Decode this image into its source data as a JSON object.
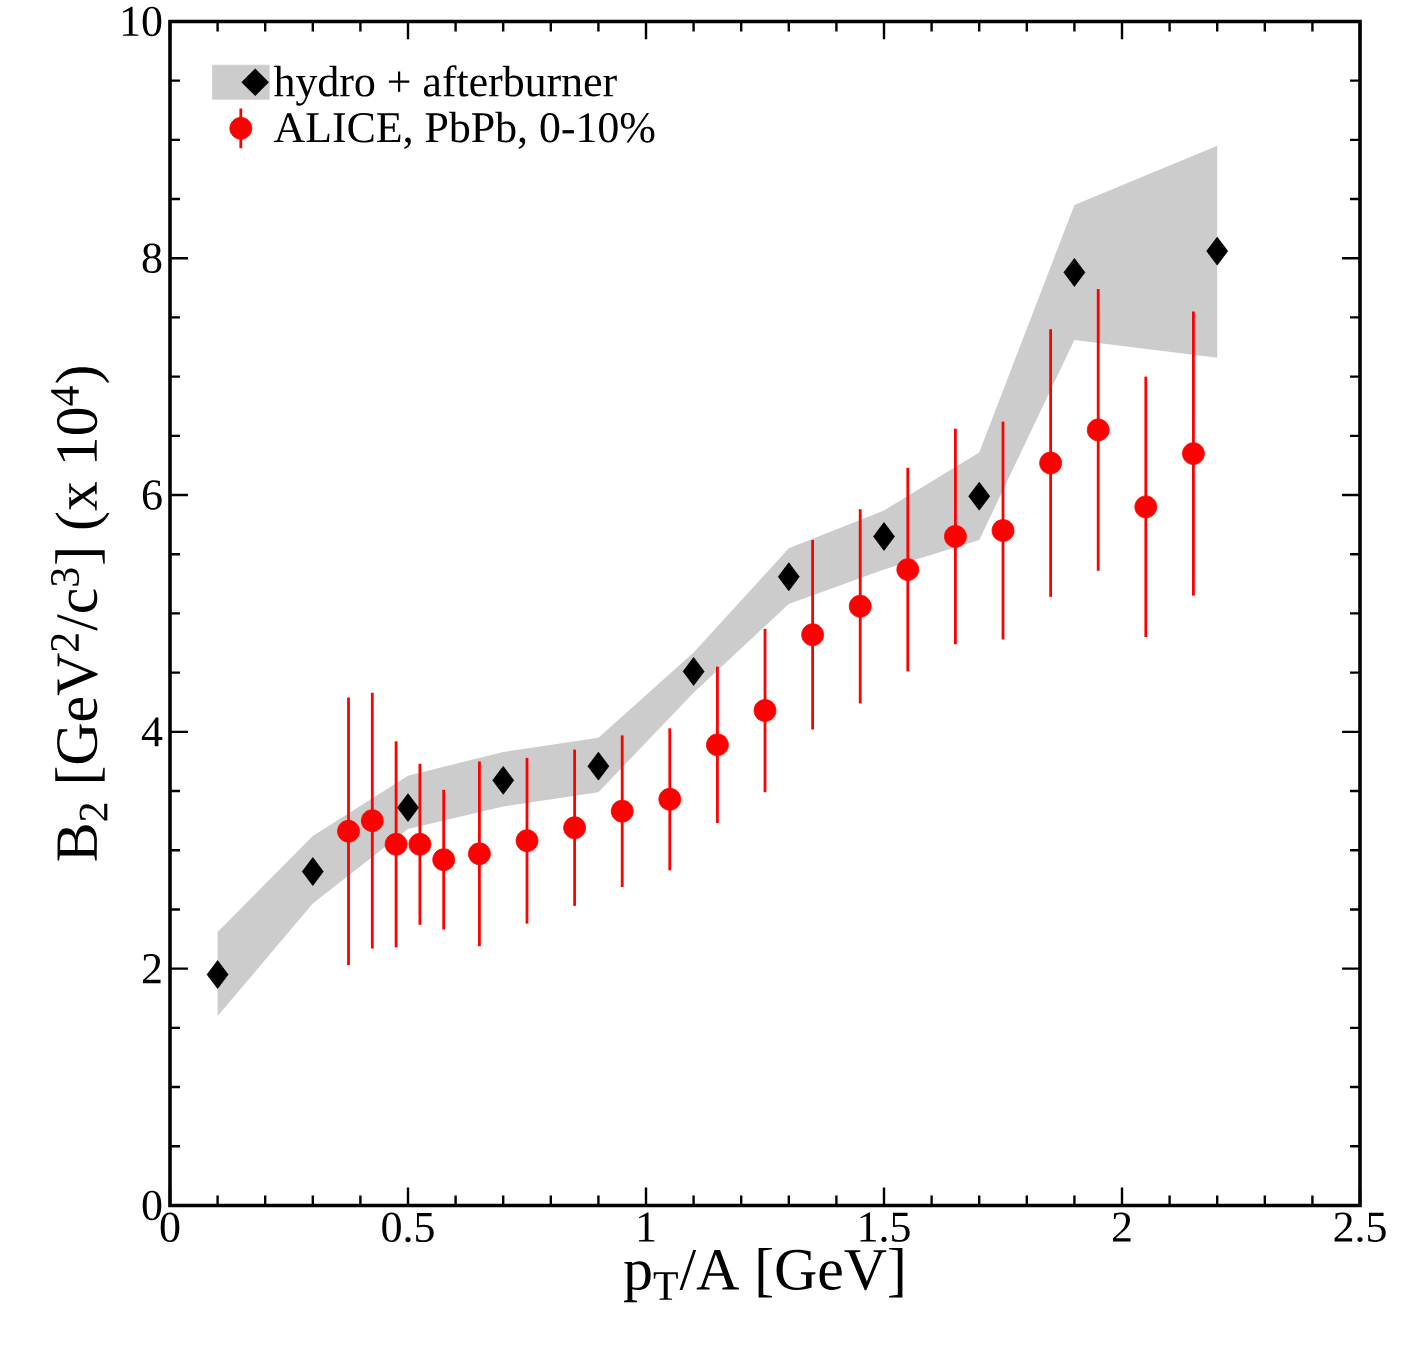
{
  "chart_data": {
    "type": "scatter",
    "xlabel": "p$_{T}$/A [GeV]",
    "ylabel": "B$_{2}$ [GeV$^{2}$/c$^{3}$] (x 10$^{4}$)",
    "xlim": [
      0,
      2.5
    ],
    "xticks": [
      0,
      0.5,
      1,
      1.5,
      2,
      2.5
    ],
    "ylim": [
      0,
      10
    ],
    "yticks": [
      0,
      2,
      4,
      6,
      8,
      10
    ],
    "legend": "top left",
    "grid": false,
    "series": [
      {
        "name": "hydro + afterburner",
        "color": "#000000",
        "marker": "diamond",
        "x": [
          0.1,
          0.3,
          0.5,
          0.7,
          0.9,
          1.1,
          1.3,
          1.5,
          1.7,
          1.9,
          2.2
        ],
        "values": [
          1.95,
          2.82,
          3.36,
          3.59,
          3.71,
          4.51,
          5.31,
          5.65,
          5.99,
          7.88,
          8.06
        ],
        "lower": [
          1.6,
          2.55,
          3.18,
          3.37,
          3.49,
          4.33,
          5.08,
          5.37,
          5.62,
          7.31,
          7.16
        ],
        "upper": [
          2.31,
          3.12,
          3.63,
          3.83,
          3.95,
          4.67,
          5.55,
          5.87,
          6.36,
          8.45,
          8.95
        ]
      },
      {
        "name": "ALICE, PbPb, 0-10%",
        "color": "#ff0000",
        "marker": "circle",
        "x": [
          0.375,
          0.425,
          0.475,
          0.525,
          0.575,
          0.65,
          0.75,
          0.85,
          0.95,
          1.05,
          1.15,
          1.25,
          1.35,
          1.45,
          1.55,
          1.65,
          1.75,
          1.85,
          1.95,
          2.05,
          2.15
        ],
        "values": [
          3.16,
          3.25,
          3.05,
          3.05,
          2.92,
          2.97,
          3.08,
          3.19,
          3.33,
          3.43,
          3.89,
          4.18,
          4.82,
          5.06,
          5.37,
          5.65,
          5.7,
          6.27,
          6.55,
          5.9,
          6.35
        ],
        "errors": [
          1.13,
          1.08,
          0.87,
          0.68,
          0.59,
          0.78,
          0.7,
          0.66,
          0.64,
          0.6,
          0.66,
          0.69,
          0.8,
          0.82,
          0.86,
          0.91,
          0.92,
          1.13,
          1.19,
          1.1,
          1.2
        ]
      }
    ]
  }
}
